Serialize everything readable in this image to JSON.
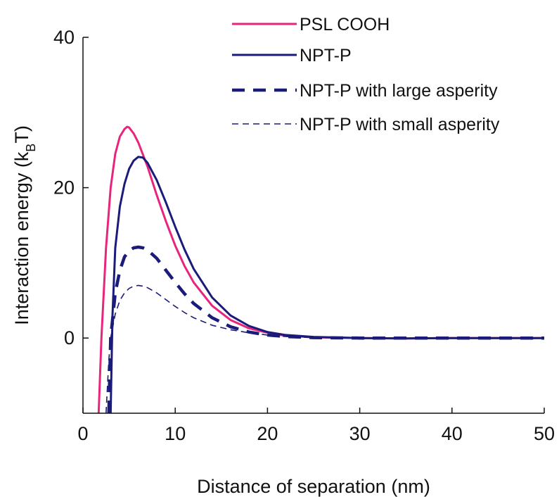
{
  "chart_data": {
    "type": "line",
    "title": "",
    "xlabel": "Distance of separation (nm)",
    "ylabel": "Interaction energy (k",
    "ylabel_sub": "B",
    "ylabel_tail": "T)",
    "xlim": [
      0,
      50
    ],
    "ylim": [
      -10,
      40
    ],
    "xticks": [
      0,
      10,
      20,
      30,
      40,
      50
    ],
    "yticks": [
      0,
      20,
      40
    ],
    "grid": false,
    "legend_position": "top-right",
    "series": [
      {
        "name": "PSL COOH",
        "color": "#e8247c",
        "style": "solid",
        "x": [
          1.7,
          2.0,
          2.5,
          3.0,
          3.5,
          4.0,
          4.5,
          4.8,
          5.0,
          5.5,
          6.0,
          7.0,
          8.0,
          9.0,
          10.0,
          11.0,
          12.0,
          14.0,
          16.0,
          18.0,
          20.0,
          22.0,
          25.0,
          30.0,
          35.0,
          40.0,
          45.0,
          50.0
        ],
        "y": [
          -10.0,
          0.0,
          12.0,
          20.0,
          24.5,
          26.8,
          27.8,
          28.1,
          28.0,
          27.2,
          26.0,
          22.8,
          19.0,
          15.5,
          12.3,
          9.6,
          7.4,
          4.3,
          2.4,
          1.3,
          0.7,
          0.3,
          0.1,
          0.0,
          -0.05,
          0.0,
          0.0,
          0.0
        ]
      },
      {
        "name": "NPT-P",
        "color": "#1b1b7a",
        "style": "solid",
        "x": [
          3.0,
          3.2,
          3.5,
          4.0,
          4.5,
          5.0,
          5.5,
          6.0,
          6.5,
          7.0,
          8.0,
          9.0,
          10.0,
          11.0,
          12.0,
          14.0,
          16.0,
          18.0,
          20.0,
          22.0,
          25.0,
          30.0,
          35.0,
          40.0,
          45.0,
          50.0
        ],
        "y": [
          -10.0,
          3.0,
          12.0,
          17.5,
          20.5,
          22.5,
          23.6,
          24.1,
          24.0,
          23.3,
          21.0,
          18.0,
          14.8,
          11.8,
          9.2,
          5.4,
          3.0,
          1.6,
          0.8,
          0.4,
          0.15,
          0.0,
          -0.05,
          0.0,
          0.0,
          0.0
        ]
      },
      {
        "name": "NPT-P with large asperity",
        "color": "#1b1b7a",
        "style": "dash-thick",
        "x": [
          2.8,
          3.0,
          3.5,
          4.0,
          4.5,
          5.0,
          5.5,
          6.0,
          6.5,
          7.0,
          8.0,
          9.0,
          10.0,
          11.0,
          12.0,
          14.0,
          16.0,
          18.0,
          20.0,
          22.0,
          25.0,
          30.0,
          35.0,
          40.0,
          45.0,
          50.0
        ],
        "y": [
          -10.0,
          0.0,
          6.0,
          9.0,
          10.8,
          11.6,
          12.0,
          12.1,
          12.0,
          11.7,
          10.6,
          9.0,
          7.4,
          5.9,
          4.6,
          2.7,
          1.5,
          0.8,
          0.4,
          0.2,
          0.05,
          0.0,
          0.0,
          0.0,
          0.0,
          0.0
        ]
      },
      {
        "name": "NPT-P with small asperity",
        "color": "#1b1b7a",
        "style": "dash-thin",
        "x": [
          2.5,
          2.8,
          3.0,
          3.5,
          4.0,
          4.5,
          5.0,
          5.5,
          6.0,
          6.5,
          7.0,
          8.0,
          9.0,
          10.0,
          11.0,
          12.0,
          14.0,
          16.0,
          18.0,
          20.0,
          22.0,
          25.0,
          30.0,
          35.0,
          40.0,
          45.0,
          50.0
        ],
        "y": [
          -10.0,
          -3.0,
          0.0,
          3.2,
          5.0,
          6.0,
          6.6,
          6.9,
          7.0,
          6.9,
          6.7,
          6.0,
          5.1,
          4.2,
          3.4,
          2.7,
          1.7,
          1.1,
          0.7,
          0.4,
          0.2,
          0.05,
          0.0,
          0.0,
          0.0,
          0.0,
          0.0
        ]
      }
    ]
  }
}
